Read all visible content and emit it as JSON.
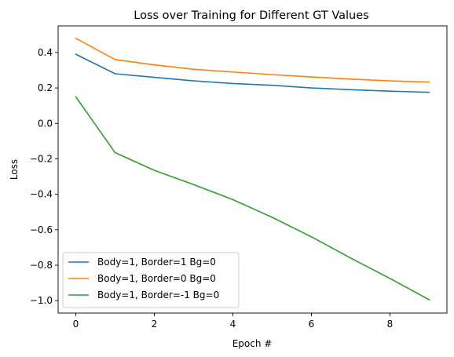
{
  "chart_data": {
    "type": "line",
    "title": "Loss over Training for Different GT Values",
    "xlabel": "Epoch #",
    "ylabel": "Loss",
    "xlim": [
      -0.45,
      9.45
    ],
    "ylim": [
      -1.07,
      0.55
    ],
    "xticks": [
      0,
      2,
      4,
      6,
      8
    ],
    "yticks": [
      0.4,
      0.2,
      0.0,
      -0.2,
      -0.4,
      -0.6,
      -0.8,
      -1.0
    ],
    "xtick_labels": [
      "0",
      "2",
      "4",
      "6",
      "8"
    ],
    "ytick_labels": [
      "0.4",
      "0.2",
      "0.0",
      "−0.2",
      "−0.4",
      "−0.6",
      "−0.8",
      "−1.0"
    ],
    "grid": false,
    "legend_position": "lower-left",
    "x": [
      0,
      1,
      2,
      3,
      4,
      5,
      6,
      7,
      8,
      9
    ],
    "series": [
      {
        "name": "Body=1, Border=1 Bg=0",
        "color": "#1f77b4",
        "values": [
          0.39,
          0.28,
          0.26,
          0.24,
          0.225,
          0.215,
          0.2,
          0.19,
          0.182,
          0.175
        ]
      },
      {
        "name": "Body=1, Border=0 Bg=0",
        "color": "#ff7f0e",
        "values": [
          0.48,
          0.36,
          0.33,
          0.305,
          0.29,
          0.275,
          0.262,
          0.25,
          0.24,
          0.233
        ]
      },
      {
        "name": "Body=1, Border=-1 Bg=0",
        "color": "#2ca02c",
        "values": [
          0.15,
          -0.165,
          -0.265,
          -0.345,
          -0.43,
          -0.53,
          -0.64,
          -0.76,
          -0.875,
          -0.995
        ]
      }
    ]
  }
}
